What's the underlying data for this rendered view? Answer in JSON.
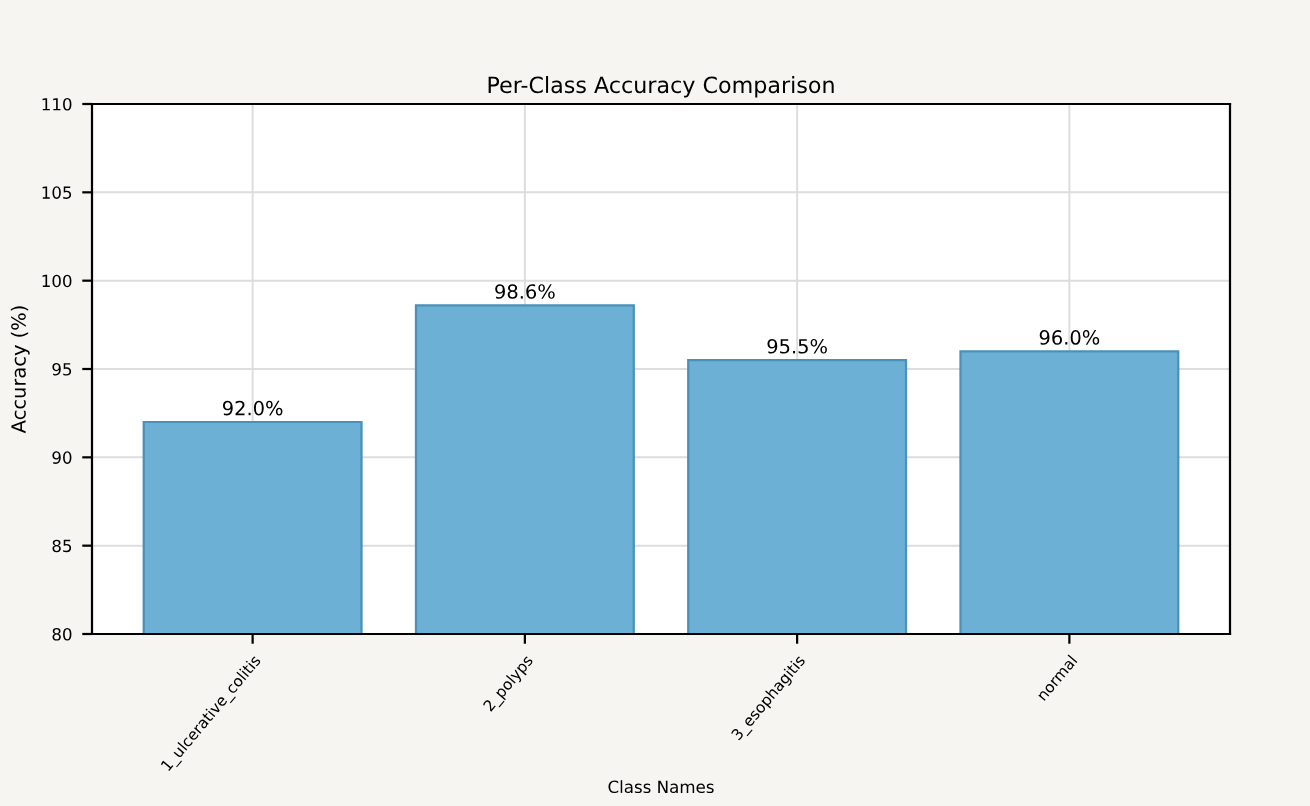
{
  "chart_data": {
    "type": "bar",
    "title": "Per-Class Accuracy Comparison",
    "xlabel": "Class Names",
    "ylabel": "Accuracy (%)",
    "categories": [
      "1_ulcerative_colitis",
      "2_polyps",
      "3_esophagitis",
      "normal"
    ],
    "values": [
      92.0,
      98.6,
      95.5,
      96.0
    ],
    "value_labels": [
      "92.0%",
      "98.6%",
      "95.5%",
      "96.0%"
    ],
    "color": "#6cb0d6",
    "ylim": [
      80,
      110
    ],
    "yticks": [
      80,
      85,
      90,
      95,
      100,
      105,
      110
    ],
    "grid": true
  }
}
